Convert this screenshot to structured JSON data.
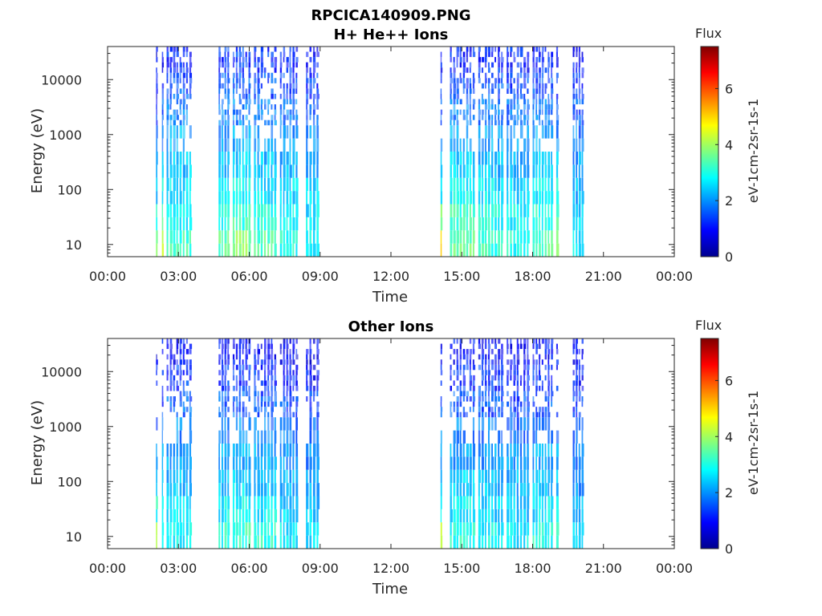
{
  "figure": {
    "title_line1": "RPCICA140909.PNG"
  },
  "colors": {
    "axis": "#262626",
    "background": "#ffffff",
    "jet": [
      "#00008f",
      "#0000ff",
      "#0080ff",
      "#00ffff",
      "#80ff80",
      "#ffff00",
      "#ff8000",
      "#ff0000",
      "#800000"
    ]
  },
  "chart_data": [
    {
      "type": "heatmap",
      "title": "H+ He++ Ions",
      "xlabel": "Time",
      "ylabel": "Energy (eV)",
      "xticks": [
        "00:00",
        "03:00",
        "06:00",
        "09:00",
        "12:00",
        "15:00",
        "18:00",
        "21:00",
        "00:00"
      ],
      "xlim_hours": [
        0,
        24
      ],
      "yscale": "log",
      "ylim": [
        6,
        40000
      ],
      "yticks": [
        "10",
        "100",
        "1000",
        "10000"
      ],
      "colorbar": {
        "label": "Flux",
        "unit": "eV-1cm-2sr-1s-1",
        "ticks": [
          "0",
          "2",
          "4",
          "6"
        ],
        "range": [
          0,
          7.5
        ],
        "colormap": "jet"
      },
      "bands": [
        {
          "t_start": 2.05,
          "t_end": 2.15,
          "flux": [
            3.5,
            3.0,
            2.5,
            2.0,
            1.5,
            1.2,
            1.0,
            0.8
          ]
        },
        {
          "t_start": 2.3,
          "t_end": 2.4,
          "flux": [
            4.5,
            3.2,
            2.8,
            2.2,
            2.0,
            1.6,
            1.3,
            1.0
          ]
        },
        {
          "t_start": 2.5,
          "t_end": 3.6,
          "flux": [
            3.2,
            2.8,
            2.6,
            2.4,
            2.2,
            1.8,
            1.5,
            1.2
          ]
        },
        {
          "t_start": 4.7,
          "t_end": 5.2,
          "flux": [
            3.5,
            3.0,
            2.7,
            2.4,
            2.0,
            1.8,
            1.5,
            1.2
          ]
        },
        {
          "t_start": 5.3,
          "t_end": 6.1,
          "flux": [
            3.8,
            3.2,
            2.8,
            2.5,
            2.2,
            1.9,
            1.6,
            1.3
          ]
        },
        {
          "t_start": 6.2,
          "t_end": 7.2,
          "flux": [
            3.4,
            3.0,
            2.6,
            2.3,
            2.1,
            1.8,
            1.5,
            1.2
          ]
        },
        {
          "t_start": 7.3,
          "t_end": 8.1,
          "flux": [
            3.0,
            2.8,
            2.5,
            2.2,
            2.0,
            1.7,
            1.4,
            1.1
          ]
        },
        {
          "t_start": 8.4,
          "t_end": 9.0,
          "flux": [
            2.8,
            2.6,
            2.4,
            2.1,
            1.9,
            1.6,
            1.3,
            1.0
          ]
        },
        {
          "t_start": 14.1,
          "t_end": 14.2,
          "flux": [
            4.8,
            3.5,
            2.9,
            2.4,
            2.0,
            1.6,
            1.3,
            1.0
          ]
        },
        {
          "t_start": 14.5,
          "t_end": 15.6,
          "flux": [
            3.6,
            3.2,
            2.8,
            2.5,
            2.2,
            1.8,
            1.4,
            1.1
          ]
        },
        {
          "t_start": 15.7,
          "t_end": 16.8,
          "flux": [
            3.2,
            2.9,
            2.6,
            2.3,
            2.1,
            1.8,
            1.5,
            1.2
          ]
        },
        {
          "t_start": 16.9,
          "t_end": 17.9,
          "flux": [
            3.0,
            2.8,
            2.5,
            2.2,
            2.0,
            1.7,
            1.4,
            1.1
          ]
        },
        {
          "t_start": 18.0,
          "t_end": 18.9,
          "flux": [
            3.4,
            3.0,
            2.7,
            2.4,
            2.1,
            1.8,
            1.5,
            1.2
          ]
        },
        {
          "t_start": 19.0,
          "t_end": 19.15,
          "flux": [
            3.8,
            3.2,
            2.8,
            2.4,
            2.0,
            1.6,
            1.3,
            1.0
          ]
        },
        {
          "t_start": 19.7,
          "t_end": 20.2,
          "flux": [
            2.6,
            2.4,
            2.2,
            2.0,
            1.8,
            1.5,
            1.2,
            1.0
          ]
        }
      ]
    },
    {
      "type": "heatmap",
      "title": "Other Ions",
      "xlabel": "Time",
      "ylabel": "Energy (eV)",
      "xticks": [
        "00:00",
        "03:00",
        "06:00",
        "09:00",
        "12:00",
        "15:00",
        "18:00",
        "21:00",
        "00:00"
      ],
      "xlim_hours": [
        0,
        24
      ],
      "yscale": "log",
      "ylim": [
        6,
        40000
      ],
      "yticks": [
        "10",
        "100",
        "1000",
        "10000"
      ],
      "colorbar": {
        "label": "Flux",
        "unit": "eV-1cm-2sr-1s-1",
        "ticks": [
          "0",
          "2",
          "4",
          "6"
        ],
        "range": [
          0,
          7.5
        ],
        "colormap": "jet"
      },
      "bands": [
        {
          "t_start": 2.05,
          "t_end": 2.15,
          "flux": [
            4.0,
            3.0,
            2.4,
            2.0,
            1.5,
            1.2,
            1.0,
            0.8
          ]
        },
        {
          "t_start": 2.3,
          "t_end": 2.4,
          "flux": [
            3.2,
            2.6,
            2.3,
            2.0,
            1.7,
            1.4,
            1.2,
            1.0
          ]
        },
        {
          "t_start": 2.5,
          "t_end": 3.6,
          "flux": [
            2.8,
            2.5,
            2.3,
            2.1,
            1.9,
            1.6,
            1.3,
            1.0
          ]
        },
        {
          "t_start": 4.7,
          "t_end": 5.2,
          "flux": [
            3.0,
            2.7,
            2.4,
            2.1,
            1.8,
            1.6,
            1.3,
            1.0
          ]
        },
        {
          "t_start": 5.3,
          "t_end": 6.1,
          "flux": [
            3.2,
            2.8,
            2.5,
            2.2,
            1.9,
            1.6,
            1.3,
            1.0
          ]
        },
        {
          "t_start": 6.2,
          "t_end": 7.2,
          "flux": [
            3.0,
            2.7,
            2.4,
            2.1,
            1.8,
            1.5,
            1.2,
            1.0
          ]
        },
        {
          "t_start": 7.3,
          "t_end": 8.1,
          "flux": [
            2.7,
            2.5,
            2.2,
            2.0,
            1.7,
            1.4,
            1.1,
            0.9
          ]
        },
        {
          "t_start": 8.4,
          "t_end": 9.0,
          "flux": [
            2.6,
            2.4,
            2.1,
            1.9,
            1.6,
            1.3,
            1.0,
            0.8
          ]
        },
        {
          "t_start": 14.1,
          "t_end": 14.2,
          "flux": [
            4.2,
            3.0,
            2.5,
            2.1,
            1.8,
            1.5,
            1.2,
            1.0
          ]
        },
        {
          "t_start": 14.5,
          "t_end": 15.6,
          "flux": [
            3.0,
            2.7,
            2.4,
            2.1,
            1.8,
            1.5,
            1.2,
            1.0
          ]
        },
        {
          "t_start": 15.7,
          "t_end": 16.8,
          "flux": [
            2.8,
            2.5,
            2.3,
            2.0,
            1.8,
            1.5,
            1.2,
            1.0
          ]
        },
        {
          "t_start": 16.9,
          "t_end": 17.9,
          "flux": [
            2.7,
            2.4,
            2.2,
            2.0,
            1.7,
            1.4,
            1.1,
            0.9
          ]
        },
        {
          "t_start": 18.0,
          "t_end": 18.9,
          "flux": [
            3.0,
            2.6,
            2.3,
            2.1,
            1.8,
            1.5,
            1.2,
            1.0
          ]
        },
        {
          "t_start": 19.0,
          "t_end": 19.15,
          "flux": [
            3.3,
            2.8,
            2.4,
            2.1,
            1.8,
            1.5,
            1.2,
            1.0
          ]
        },
        {
          "t_start": 19.7,
          "t_end": 20.2,
          "flux": [
            2.4,
            2.2,
            2.0,
            1.8,
            1.6,
            1.3,
            1.1,
            0.9
          ]
        }
      ]
    }
  ]
}
